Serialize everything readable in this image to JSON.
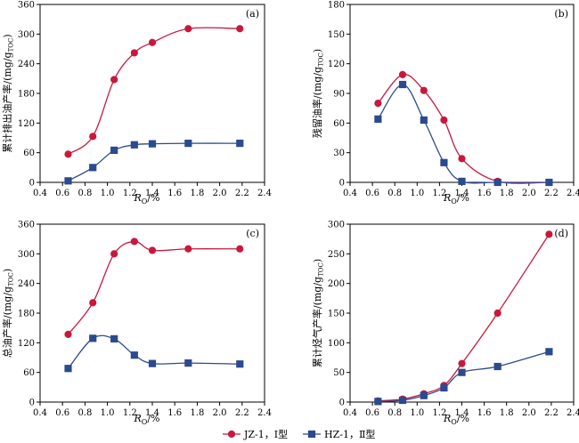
{
  "chart_data": [
    {
      "panel_label": "(a)",
      "type": "line",
      "xlabel_main": "R",
      "xlabel_sub": "O",
      "xlabel_unit": "/%",
      "ylabel": "累计排出油产率/(mg/g",
      "ylabel_sub": "TOC",
      "ylabel_end": ")",
      "xlim": [
        0.4,
        2.4
      ],
      "ylim": [
        0,
        360
      ],
      "xticks": [
        "0.4",
        "0.6",
        "0.8",
        "1.0",
        "1.2",
        "1.4",
        "1.6",
        "1.8",
        "2.0",
        "2.2",
        "2.4"
      ],
      "yticks": [
        "0",
        "60",
        "120",
        "180",
        "240",
        "300",
        "360"
      ],
      "series": [
        {
          "name": "JZ-1，Ⅰ型",
          "x": [
            0.65,
            0.87,
            1.06,
            1.24,
            1.4,
            1.72,
            2.18
          ],
          "y": [
            57,
            93,
            208,
            262,
            283,
            311,
            311
          ]
        },
        {
          "name": "HZ-1，Ⅱ型",
          "x": [
            0.65,
            0.87,
            1.06,
            1.24,
            1.4,
            1.72,
            2.18
          ],
          "y": [
            3,
            30,
            65,
            76,
            78,
            79,
            79
          ]
        }
      ]
    },
    {
      "panel_label": "(b)",
      "type": "line",
      "xlabel_main": "R",
      "xlabel_sub": "O",
      "xlabel_unit": "/%",
      "ylabel": "残留油率/(mg/g",
      "ylabel_sub": "TOC",
      "ylabel_end": ")",
      "xlim": [
        0.4,
        2.4
      ],
      "ylim": [
        0,
        180
      ],
      "xticks": [
        "0.4",
        "0.6",
        "0.8",
        "1.0",
        "1.2",
        "1.4",
        "1.6",
        "1.8",
        "2.0",
        "2.2",
        "2.4"
      ],
      "yticks": [
        "0",
        "30",
        "60",
        "90",
        "120",
        "150",
        "180"
      ],
      "series": [
        {
          "name": "JZ-1，Ⅰ型",
          "x": [
            0.65,
            0.87,
            1.06,
            1.24,
            1.4,
            1.72,
            2.18
          ],
          "y": [
            80,
            109,
            93,
            63,
            24,
            1,
            0
          ]
        },
        {
          "name": "HZ-1，Ⅱ型",
          "x": [
            0.65,
            0.87,
            1.06,
            1.24,
            1.4,
            1.72,
            2.18
          ],
          "y": [
            64,
            99,
            63,
            20,
            1,
            0,
            0
          ]
        }
      ]
    },
    {
      "panel_label": "(c)",
      "type": "line",
      "xlabel_main": "R",
      "xlabel_sub": "O",
      "xlabel_unit": "/%",
      "ylabel": "总油产率/(mg/g",
      "ylabel_sub": "TOC",
      "ylabel_end": ")",
      "xlim": [
        0.4,
        2.4
      ],
      "ylim": [
        0,
        360
      ],
      "xticks": [
        "0.4",
        "0.6",
        "0.8",
        "1.0",
        "1.2",
        "1.4",
        "1.6",
        "1.8",
        "2.0",
        "2.2",
        "2.4"
      ],
      "yticks": [
        "0",
        "60",
        "120",
        "180",
        "240",
        "300",
        "360"
      ],
      "series": [
        {
          "name": "JZ-1，Ⅰ型",
          "x": [
            0.65,
            0.87,
            1.06,
            1.24,
            1.4,
            1.72,
            2.18
          ],
          "y": [
            137,
            201,
            300,
            325,
            307,
            310,
            310
          ]
        },
        {
          "name": "HZ-1，Ⅱ型",
          "x": [
            0.65,
            0.87,
            1.06,
            1.24,
            1.4,
            1.72,
            2.18
          ],
          "y": [
            68,
            129,
            128,
            95,
            78,
            79,
            77
          ]
        }
      ]
    },
    {
      "panel_label": "(d)",
      "type": "line",
      "xlabel_main": "R",
      "xlabel_sub": "O",
      "xlabel_unit": "/%",
      "ylabel": "累计烃气产率/(mg/g",
      "ylabel_sub": "TOC",
      "ylabel_end": ")",
      "xlim": [
        0.4,
        2.4
      ],
      "ylim": [
        0,
        300
      ],
      "xticks": [
        "0.4",
        "0.6",
        "0.8",
        "1.0",
        "1.2",
        "1.4",
        "1.6",
        "1.8",
        "2.0",
        "2.2",
        "2.4"
      ],
      "yticks": [
        "0",
        "50",
        "100",
        "150",
        "200",
        "250",
        "300"
      ],
      "series": [
        {
          "name": "JZ-1，Ⅰ型",
          "x": [
            0.65,
            0.87,
            1.06,
            1.24,
            1.4,
            1.72,
            2.18
          ],
          "y": [
            2,
            5,
            14,
            28,
            65,
            150,
            283
          ]
        },
        {
          "name": "HZ-1，Ⅱ型",
          "x": [
            0.65,
            0.87,
            1.06,
            1.24,
            1.4,
            1.72,
            2.18
          ],
          "y": [
            1,
            3,
            11,
            24,
            50,
            60,
            85
          ]
        }
      ]
    }
  ],
  "legend": {
    "items": [
      {
        "label": "JZ-1，Ⅰ型",
        "color": "#c8193c",
        "marker": "circle"
      },
      {
        "label": "HZ-1，Ⅱ型",
        "color": "#2b4a8f",
        "marker": "square"
      }
    ]
  },
  "colors": {
    "series_1_line": "#c8193c",
    "series_1_fill": "#c8193c",
    "series_2_line": "#2b4a8f",
    "series_2_fill": "#2b4a8f"
  }
}
